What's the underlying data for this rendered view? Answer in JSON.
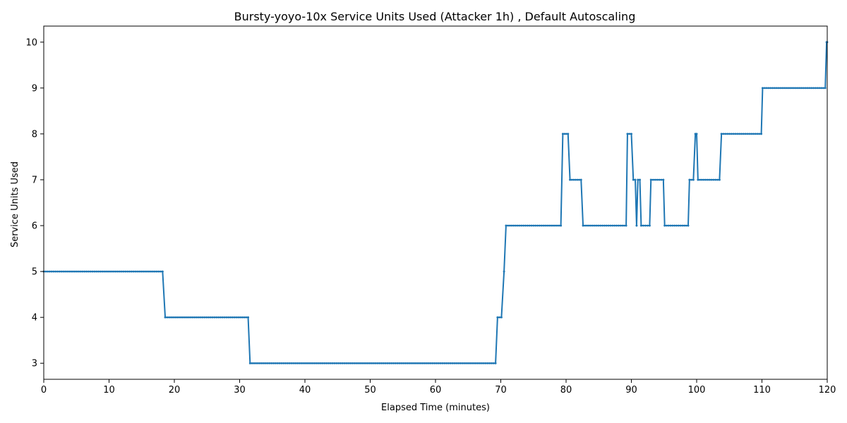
{
  "chart_data": {
    "type": "line",
    "title": "Bursty-yoyo-10x Service Units Used (Attacker 1h) , Default Autoscaling",
    "xlabel": "Elapsed Time (minutes)",
    "ylabel": "Service Units Used",
    "xlim": [
      0,
      120
    ],
    "ylim": [
      2.65,
      10.35
    ],
    "xticks": [
      0,
      10,
      20,
      30,
      40,
      50,
      60,
      70,
      80,
      90,
      100,
      110,
      120
    ],
    "yticks": [
      3,
      4,
      5,
      6,
      7,
      8,
      9,
      10
    ],
    "grid": false,
    "legend": "none",
    "series": [
      {
        "color": "#1f77b4",
        "marker": "dot",
        "x": [
          0,
          18.2,
          18.6,
          31.3,
          31.6,
          69.2,
          69.5,
          70.1,
          70.5,
          70.8,
          79.2,
          79.5,
          80.3,
          80.6,
          82.3,
          82.6,
          89.2,
          89.4,
          90.0,
          90.3,
          90.6,
          90.8,
          91.0,
          91.3,
          91.5,
          92.8,
          93.0,
          94.9,
          95.1,
          98.7,
          98.9,
          99.5,
          99.8,
          100.0,
          100.2,
          103.5,
          103.8,
          109.9,
          110.1,
          119.7,
          119.9,
          120
        ],
        "y": [
          5,
          5,
          4,
          4,
          3,
          3,
          4,
          4,
          5,
          6,
          6,
          8,
          8,
          7,
          7,
          6,
          6,
          8,
          8,
          7,
          7,
          6,
          7,
          7,
          6,
          6,
          7,
          7,
          6,
          6,
          7,
          7,
          8,
          8,
          7,
          7,
          8,
          8,
          9,
          9,
          10,
          10
        ]
      }
    ]
  }
}
